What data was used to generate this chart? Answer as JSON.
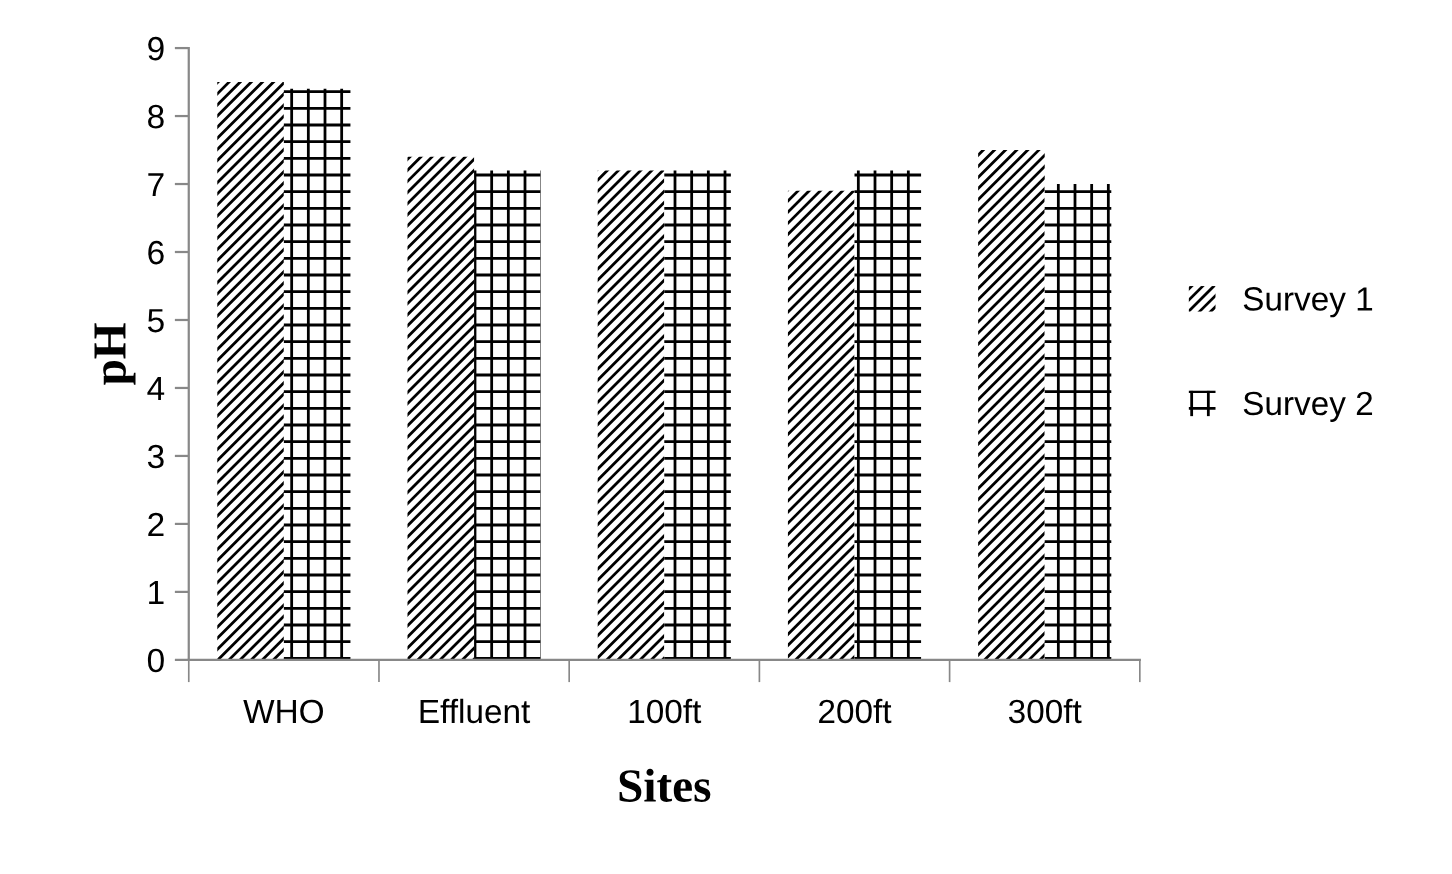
{
  "chart_data": {
    "type": "bar",
    "xlabel": "Sites",
    "ylabel": "pH",
    "categories": [
      "WHO",
      "Effluent",
      "100ft",
      "200ft",
      "300ft"
    ],
    "series": [
      {
        "name": "Survey 1",
        "color": "#000000",
        "values": [
          8.5,
          7.4,
          7.2,
          6.9,
          7.5
        ]
      },
      {
        "name": "Survey 2",
        "color": "#000000",
        "values": [
          8.4,
          7.2,
          7.2,
          7.2,
          7.0
        ]
      }
    ],
    "ylim": [
      0,
      9
    ],
    "yticks": [
      0,
      1,
      2,
      3,
      4,
      5,
      6,
      7,
      8,
      9
    ],
    "grid": false,
    "legend": "right"
  }
}
